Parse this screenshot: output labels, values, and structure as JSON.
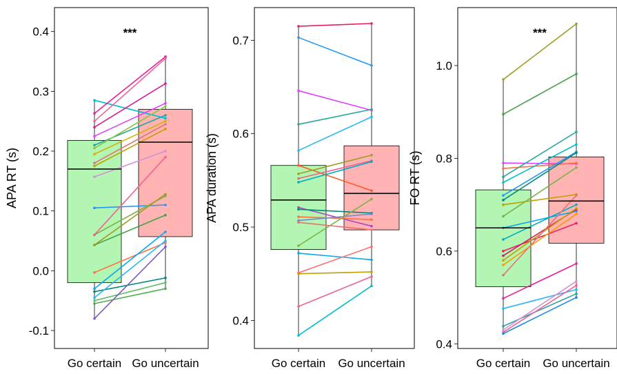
{
  "categories": [
    "Go certain",
    "Go uncertain"
  ],
  "colors": {
    "certain_box": "#b3f5b3",
    "uncertain_box": "#ffb3b3",
    "panel_border": "#000000"
  },
  "chart_data": [
    {
      "type": "boxplot-paired",
      "ylabel": "APA RT (s)",
      "significance": "***",
      "ylim": [
        -0.13,
        0.44
      ],
      "yticks": [
        -0.1,
        0.0,
        0.1,
        0.2,
        0.3,
        0.4
      ],
      "ytick_labels": [
        "-0.1",
        "0.0",
        "0.1",
        "0.2",
        "0.3",
        "0.4"
      ],
      "boxes": [
        {
          "category": "Go certain",
          "q1": -0.02,
          "median": 0.17,
          "q3": 0.218,
          "whisker_low": -0.08,
          "whisker_high": 0.285
        },
        {
          "category": "Go uncertain",
          "q1": 0.057,
          "median": 0.215,
          "q3": 0.27,
          "whisker_low": -0.03,
          "whisker_high": 0.358
        }
      ],
      "pairs": [
        {
          "certain": 0.285,
          "uncertain": 0.255,
          "color": "#00bcd4"
        },
        {
          "certain": 0.263,
          "uncertain": 0.358,
          "color": "#e91e9c"
        },
        {
          "certain": 0.25,
          "uncertain": 0.355,
          "color": "#f06292"
        },
        {
          "certain": 0.24,
          "uncertain": 0.313,
          "color": "#d81b9c"
        },
        {
          "certain": 0.225,
          "uncertain": 0.28,
          "color": "#e040fb"
        },
        {
          "certain": 0.21,
          "uncertain": 0.26,
          "color": "#26a69a"
        },
        {
          "certain": 0.205,
          "uncertain": 0.275,
          "color": "#8bc34a"
        },
        {
          "certain": 0.195,
          "uncertain": 0.25,
          "color": "#d4b000"
        },
        {
          "certain": 0.18,
          "uncertain": 0.245,
          "color": "#e57373"
        },
        {
          "certain": 0.175,
          "uncertain": 0.237,
          "color": "#c0a000"
        },
        {
          "certain": 0.157,
          "uncertain": 0.2,
          "color": "#ce93d8"
        },
        {
          "certain": 0.105,
          "uncertain": 0.11,
          "color": "#2196f3"
        },
        {
          "certain": 0.06,
          "uncertain": 0.125,
          "color": "#7cb342"
        },
        {
          "certain": 0.06,
          "uncertain": 0.19,
          "color": "#f06292"
        },
        {
          "certain": 0.043,
          "uncertain": 0.093,
          "color": "#43a047"
        },
        {
          "certain": 0.043,
          "uncertain": 0.128,
          "color": "#9e9d24"
        },
        {
          "certain": -0.003,
          "uncertain": 0.047,
          "color": "#ff7043"
        },
        {
          "certain": -0.03,
          "uncertain": 0.065,
          "color": "#03a9f4"
        },
        {
          "certain": -0.035,
          "uncertain": -0.012,
          "color": "#00897b"
        },
        {
          "certain": -0.045,
          "uncertain": 0.05,
          "color": "#29b6f6"
        },
        {
          "certain": -0.05,
          "uncertain": -0.02,
          "color": "#66bb6a"
        },
        {
          "certain": -0.055,
          "uncertain": -0.03,
          "color": "#4caf50"
        },
        {
          "certain": -0.08,
          "uncertain": 0.04,
          "color": "#7e57c2"
        }
      ]
    },
    {
      "type": "boxplot-paired",
      "ylabel": "APA duration (s)",
      "significance": "",
      "ylim": [
        0.37,
        0.735
      ],
      "yticks": [
        0.4,
        0.5,
        0.6,
        0.7
      ],
      "ytick_labels": [
        "0.4",
        "0.5",
        "0.6",
        "0.7"
      ],
      "boxes": [
        {
          "category": "Go certain",
          "q1": 0.476,
          "median": 0.529,
          "q3": 0.566,
          "whisker_low": 0.384,
          "whisker_high": 0.715
        },
        {
          "category": "Go uncertain",
          "q1": 0.497,
          "median": 0.536,
          "q3": 0.587,
          "whisker_low": 0.437,
          "whisker_high": 0.718
        }
      ],
      "pairs": [
        {
          "certain": 0.715,
          "uncertain": 0.718,
          "color": "#e91e63"
        },
        {
          "certain": 0.703,
          "uncertain": 0.673,
          "color": "#2196f3"
        },
        {
          "certain": 0.646,
          "uncertain": 0.625,
          "color": "#e040fb"
        },
        {
          "certain": 0.61,
          "uncertain": 0.626,
          "color": "#26a69a"
        },
        {
          "certain": 0.582,
          "uncertain": 0.618,
          "color": "#29b6f6"
        },
        {
          "certain": 0.566,
          "uncertain": 0.539,
          "color": "#ff5722"
        },
        {
          "certain": 0.557,
          "uncertain": 0.577,
          "color": "#9e9d24"
        },
        {
          "certain": 0.552,
          "uncertain": 0.571,
          "color": "#f06292"
        },
        {
          "certain": 0.548,
          "uncertain": 0.57,
          "color": "#00acc1"
        },
        {
          "certain": 0.521,
          "uncertain": 0.501,
          "color": "#ab47bc"
        },
        {
          "certain": 0.519,
          "uncertain": 0.515,
          "color": "#00897b"
        },
        {
          "certain": 0.511,
          "uncertain": 0.508,
          "color": "#ff7043"
        },
        {
          "certain": 0.507,
          "uncertain": 0.514,
          "color": "#7986cb"
        },
        {
          "certain": 0.505,
          "uncertain": 0.497,
          "color": "#e57373"
        },
        {
          "certain": 0.48,
          "uncertain": 0.53,
          "color": "#7cb342"
        },
        {
          "certain": 0.472,
          "uncertain": 0.465,
          "color": "#03a9f4"
        },
        {
          "certain": 0.451,
          "uncertain": 0.479,
          "color": "#ff6e6e"
        },
        {
          "certain": 0.45,
          "uncertain": 0.452,
          "color": "#c0a000"
        },
        {
          "certain": 0.415,
          "uncertain": 0.447,
          "color": "#f06292"
        },
        {
          "certain": 0.384,
          "uncertain": 0.437,
          "color": "#00bcd4"
        }
      ]
    },
    {
      "type": "boxplot-paired",
      "ylabel": "FO RT (s)",
      "significance": "***",
      "ylim": [
        0.39,
        1.125
      ],
      "yticks": [
        0.4,
        0.6,
        0.8,
        1.0
      ],
      "ytick_labels": [
        "0.4",
        "0.6",
        "0.8",
        "1.0"
      ],
      "boxes": [
        {
          "category": "Go certain",
          "q1": 0.523,
          "median": 0.65,
          "q3": 0.732,
          "whisker_low": 0.422,
          "whisker_high": 0.97
        },
        {
          "category": "Go uncertain",
          "q1": 0.617,
          "median": 0.708,
          "q3": 0.803,
          "whisker_low": 0.5,
          "whisker_high": 1.09
        }
      ],
      "pairs": [
        {
          "certain": 0.97,
          "uncertain": 1.09,
          "color": "#9e9d24"
        },
        {
          "certain": 0.895,
          "uncertain": 0.982,
          "color": "#43a047"
        },
        {
          "certain": 0.79,
          "uncertain": 0.788,
          "color": "#e040fb"
        },
        {
          "certain": 0.778,
          "uncertain": 0.79,
          "color": "#ff7043"
        },
        {
          "certain": 0.76,
          "uncertain": 0.857,
          "color": "#26a69a"
        },
        {
          "certain": 0.748,
          "uncertain": 0.83,
          "color": "#00bcd4"
        },
        {
          "certain": 0.72,
          "uncertain": 0.814,
          "color": "#2196f3"
        },
        {
          "certain": 0.71,
          "uncertain": 0.812,
          "color": "#00897b"
        },
        {
          "certain": 0.7,
          "uncertain": 0.722,
          "color": "#c0a000"
        },
        {
          "certain": 0.675,
          "uncertain": 0.78,
          "color": "#7cb342"
        },
        {
          "certain": 0.65,
          "uncertain": 0.686,
          "color": "#03a9f4"
        },
        {
          "certain": 0.625,
          "uncertain": 0.7,
          "color": "#00acc1"
        },
        {
          "certain": 0.6,
          "uncertain": 0.66,
          "color": "#e91e63"
        },
        {
          "certain": 0.59,
          "uncertain": 0.69,
          "color": "#d81b60"
        },
        {
          "certain": 0.58,
          "uncertain": 0.692,
          "color": "#c0a000"
        },
        {
          "certain": 0.57,
          "uncertain": 0.68,
          "color": "#ff9800"
        },
        {
          "certain": 0.548,
          "uncertain": 0.72,
          "color": "#e57373"
        },
        {
          "certain": 0.498,
          "uncertain": 0.573,
          "color": "#e91e9c"
        },
        {
          "certain": 0.476,
          "uncertain": 0.517,
          "color": "#29b6f6"
        },
        {
          "certain": 0.438,
          "uncertain": 0.508,
          "color": "#26a69a"
        },
        {
          "certain": 0.43,
          "uncertain": 0.535,
          "color": "#ce93d8"
        },
        {
          "certain": 0.425,
          "uncertain": 0.526,
          "color": "#f06292"
        },
        {
          "certain": 0.422,
          "uncertain": 0.5,
          "color": "#1e88e5"
        }
      ]
    }
  ]
}
